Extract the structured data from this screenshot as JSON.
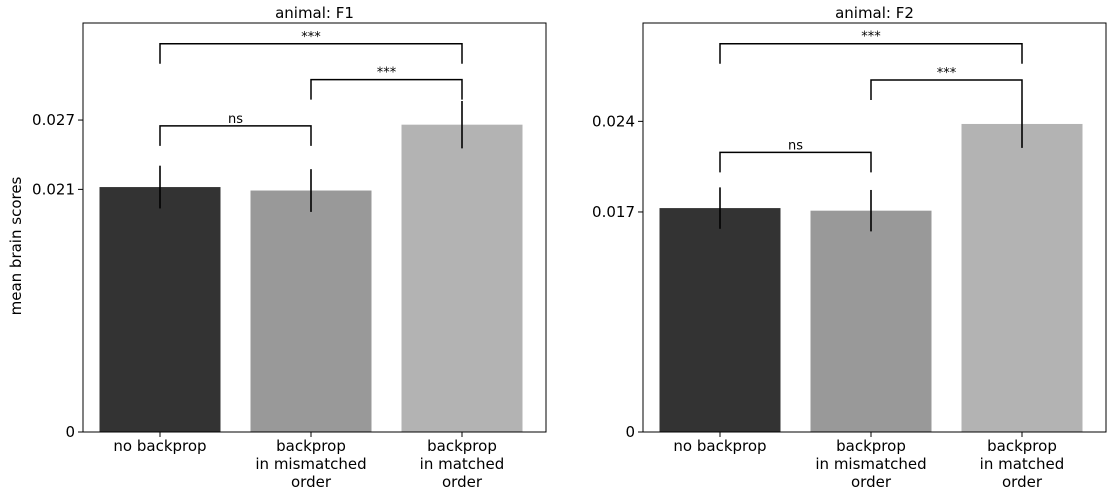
{
  "ylabel": "mean brain scores",
  "chart_data": [
    {
      "type": "bar",
      "title": "animal: F1",
      "categories": [
        [
          "no backprop"
        ],
        [
          "backprop",
          "in mismatched",
          "order"
        ],
        [
          "backprop",
          "in matched",
          "order"
        ]
      ],
      "values": [
        0.0212,
        0.0209,
        0.0266
      ],
      "errors": [
        0.00185,
        0.00185,
        0.00205
      ],
      "colors": [
        "#333333",
        "#999999",
        "#b3b3b3"
      ],
      "yticks": [
        0,
        0.021,
        0.027
      ],
      "ytick_labels": [
        "0",
        "0.021",
        "0.027"
      ],
      "ylim": [
        0,
        0.0354
      ],
      "significance": [
        {
          "from": 0,
          "to": 1,
          "label": "ns",
          "y": 0.0265
        },
        {
          "from": 1,
          "to": 2,
          "label": "***",
          "y": 0.0305
        },
        {
          "from": 0,
          "to": 2,
          "label": "***",
          "y": 0.0336
        }
      ]
    },
    {
      "type": "bar",
      "title": "animal: F2",
      "categories": [
        [
          "no backprop"
        ],
        [
          "backprop",
          "in mismatched",
          "order"
        ],
        [
          "backprop",
          "in matched",
          "order"
        ]
      ],
      "values": [
        0.0173,
        0.0171,
        0.0238
      ],
      "errors": [
        0.0016,
        0.0016,
        0.00185
      ],
      "colors": [
        "#333333",
        "#999999",
        "#b3b3b3"
      ],
      "yticks": [
        0,
        0.017,
        0.024
      ],
      "ytick_labels": [
        "0",
        "0.017",
        "0.024"
      ],
      "ylim": [
        0,
        0.0316
      ],
      "significance": [
        {
          "from": 0,
          "to": 1,
          "label": "ns",
          "y": 0.0216
        },
        {
          "from": 1,
          "to": 2,
          "label": "***",
          "y": 0.0272
        },
        {
          "from": 0,
          "to": 2,
          "label": "***",
          "y": 0.03
        }
      ]
    }
  ]
}
